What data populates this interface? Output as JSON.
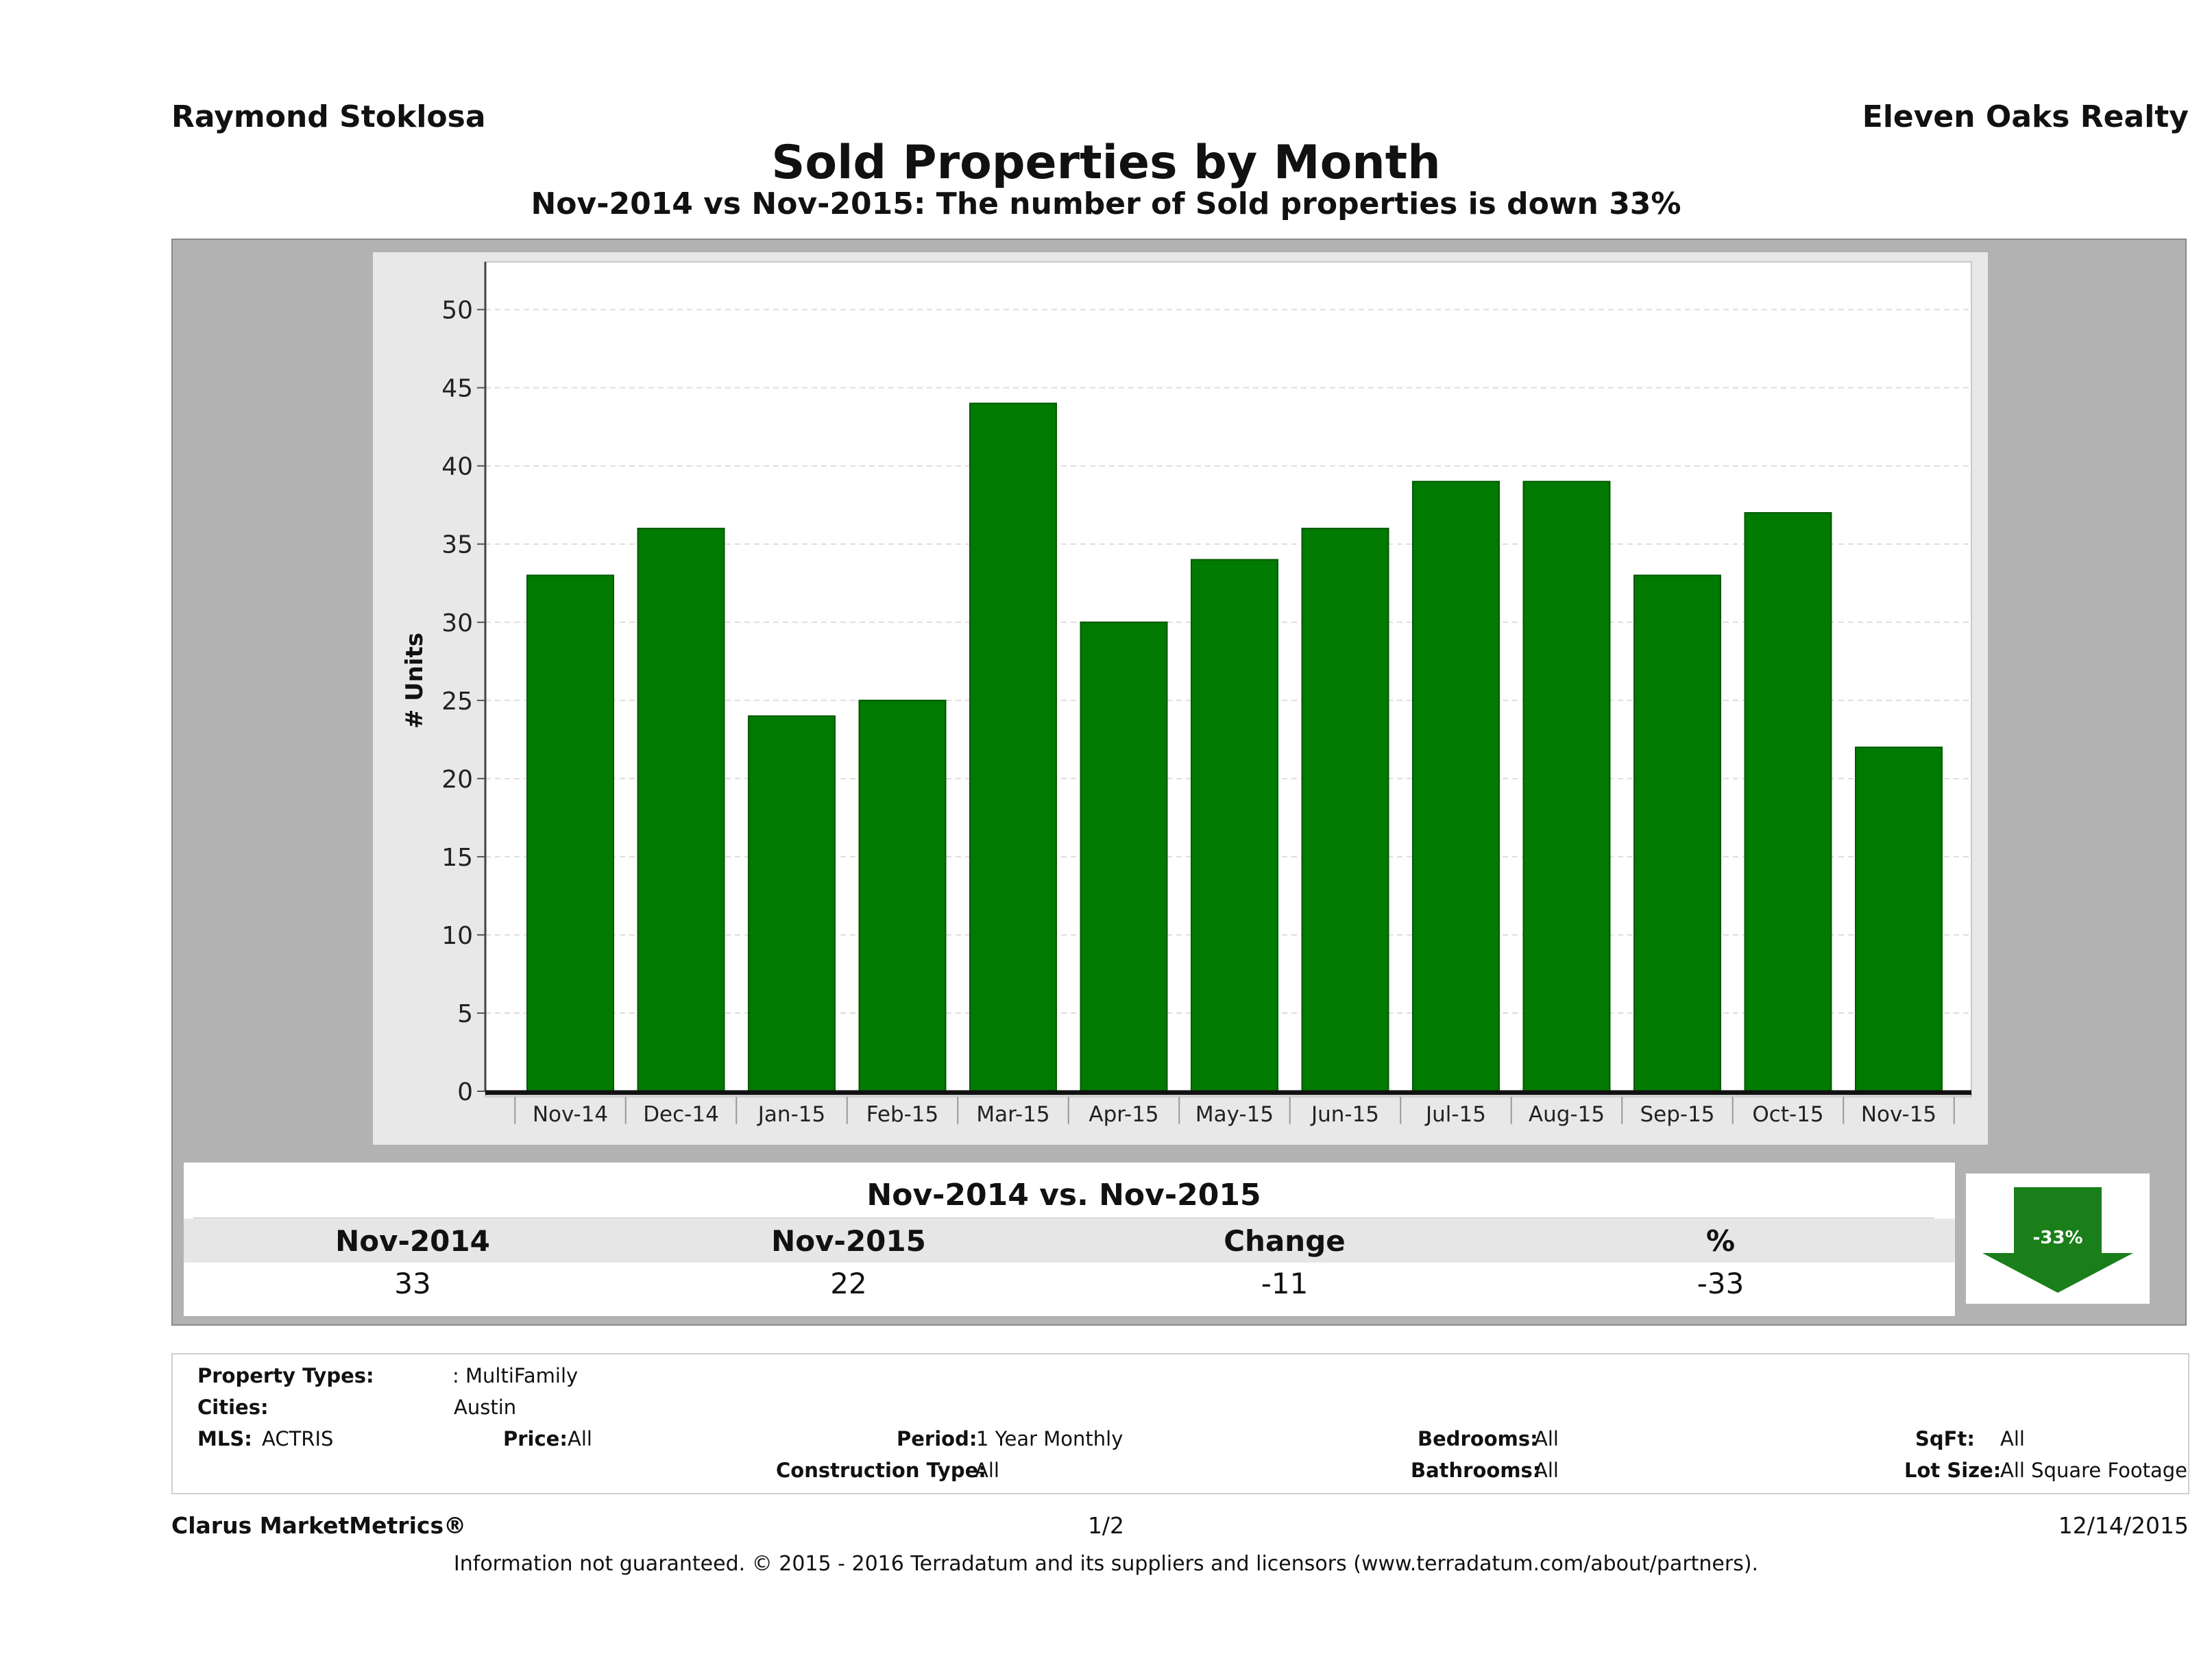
{
  "header": {
    "agent_name": "Raymond Stoklosa",
    "company": "Eleven Oaks Realty",
    "title": "Sold Properties by Month",
    "subtitle": "Nov-2014 vs Nov-2015: The number of Sold   properties is down 33%"
  },
  "chart_data": {
    "type": "bar",
    "categories": [
      "Nov-14",
      "Dec-14",
      "Jan-15",
      "Feb-15",
      "Mar-15",
      "Apr-15",
      "May-15",
      "Jun-15",
      "Jul-15",
      "Aug-15",
      "Sep-15",
      "Oct-15",
      "Nov-15"
    ],
    "values": [
      33,
      36,
      24,
      25,
      44,
      30,
      34,
      36,
      39,
      39,
      33,
      37,
      22
    ],
    "title": "",
    "xlabel": "",
    "ylabel": "# Units",
    "ylim": [
      0,
      52
    ],
    "yticks": [
      0,
      5,
      10,
      15,
      20,
      25,
      30,
      35,
      40,
      45,
      50
    ],
    "grid": true,
    "bar_color": "#007a00"
  },
  "comparison": {
    "title": "Nov-2014 vs. Nov-2015",
    "headers": [
      "Nov-2014",
      "Nov-2015",
      "Change",
      "%"
    ],
    "values": [
      "33",
      "22",
      "-11",
      "-33"
    ],
    "badge": "-33%",
    "badge_color": "#1a7f1a"
  },
  "details": {
    "property_types_label": "Property Types:",
    "property_types_value": ": MultiFamily",
    "cities_label": "Cities:",
    "cities_value": "Austin",
    "mls_label": "MLS:",
    "mls_value": "ACTRIS",
    "price_label": "Price:",
    "price_value": "All",
    "period_label": "Period:",
    "period_value": "1 Year Monthly",
    "construction_label": "Construction Type:",
    "construction_value": "All",
    "bedrooms_label": "Bedrooms:",
    "bedrooms_value": "All",
    "bathrooms_label": "Bathrooms:",
    "bathrooms_value": "All",
    "sqft_label": "SqFt:",
    "sqft_value": "All",
    "lot_size_label": "Lot Size:",
    "lot_size_value": "All Square Footage"
  },
  "footer": {
    "brand": "Clarus MarketMetrics®",
    "page": "1/2",
    "date": "12/14/2015",
    "disclaimer": "Information not guaranteed. © 2015 - 2016 Terradatum and its suppliers and licensors (www.terradatum.com/about/partners)."
  }
}
